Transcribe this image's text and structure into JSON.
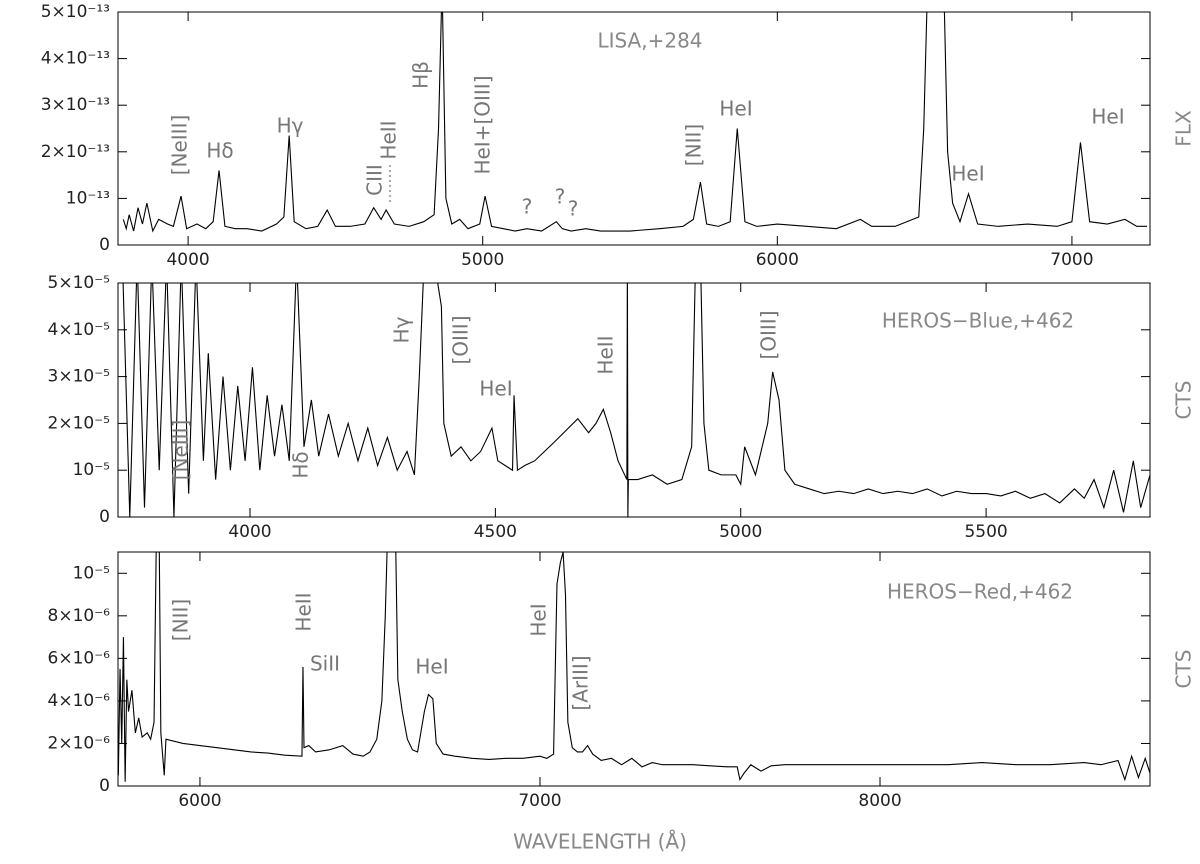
{
  "chart_data": [
    {
      "type": "line",
      "label": "LISA,+284",
      "ylabel": "FLX",
      "color": "#000000",
      "xlim": [
        3762,
        7265
      ],
      "ylim": [
        0,
        5e-13
      ],
      "xticks": [
        4000,
        5000,
        6000,
        7000
      ],
      "yticks": [
        0,
        {
          "value": 1e-13,
          "label": "10⁻¹³"
        },
        {
          "value": 2e-13,
          "label": "2×10⁻¹³"
        },
        {
          "value": 3e-13,
          "label": "3×10⁻¹³"
        },
        {
          "value": 4e-13,
          "label": "4×10⁻¹³"
        },
        {
          "value": 5e-13,
          "label": "5×10⁻¹³"
        }
      ],
      "annotations": [
        "[NeIII]",
        "Hδ",
        "Hγ",
        "CIII",
        "HeII",
        "Hβ",
        "HeI+[OIII]",
        "?",
        "?",
        "?",
        "[NII]",
        "HeI",
        "HeI",
        "HeI"
      ],
      "x": [
        3780,
        3790,
        3800,
        3815,
        3830,
        3845,
        3860,
        3880,
        3900,
        3930,
        3950,
        3976,
        3995,
        4030,
        4060,
        4085,
        4105,
        4125,
        4160,
        4200,
        4250,
        4300,
        4325,
        4343,
        4360,
        4400,
        4440,
        4472,
        4500,
        4550,
        4600,
        4630,
        4655,
        4672,
        4700,
        4750,
        4800,
        4835,
        4850,
        4862,
        4875,
        4895,
        4922,
        4950,
        4990,
        5008,
        5030,
        5070,
        5110,
        5150,
        5200,
        5250,
        5270,
        5300,
        5350,
        5400,
        5500,
        5600,
        5680,
        5715,
        5739,
        5760,
        5800,
        5840,
        5864,
        5890,
        5930,
        6000,
        6100,
        6200,
        6282,
        6320,
        6400,
        6480,
        6497,
        6510,
        6565,
        6578,
        6595,
        6620,
        6649,
        6680,
        6750,
        6850,
        6950,
        7000,
        7029,
        7060,
        7120,
        7180,
        7220,
        7255
      ],
      "values": [
        5.5e-14,
        3.5e-14,
        6.5e-14,
        3e-14,
        8e-14,
        4.5e-14,
        9e-14,
        3e-14,
        5.5e-14,
        4.5e-14,
        4e-14,
        1.05e-13,
        3.5e-14,
        4.5e-14,
        3.5e-14,
        5e-14,
        1.6e-13,
        4e-14,
        3.5e-14,
        3.5e-14,
        3e-14,
        4.5e-14,
        6e-14,
        2.35e-13,
        5e-14,
        3.5e-14,
        4e-14,
        7.5e-14,
        4e-14,
        4e-14,
        4.5e-14,
        8e-14,
        5.5e-14,
        7.5e-14,
        4.5e-14,
        4e-14,
        5e-14,
        6.5e-14,
        2.5e-13,
        5.6e-13,
        1e-13,
        4.5e-14,
        5.5e-14,
        3.5e-14,
        4.5e-14,
        1.05e-13,
        4e-14,
        3.5e-14,
        3e-14,
        3.5e-14,
        3e-14,
        5e-14,
        3.5e-14,
        3e-14,
        3.5e-14,
        3e-14,
        3e-14,
        3.5e-14,
        4e-14,
        5.5e-14,
        1.35e-13,
        4.5e-14,
        4e-14,
        5e-14,
        2.5e-13,
        5e-14,
        4e-14,
        4.5e-14,
        4e-14,
        3.5e-14,
        5.5e-14,
        4e-14,
        4e-14,
        6e-14,
        2.5e-13,
        5.6e-13,
        5.6e-13,
        2e-13,
        9e-14,
        5e-14,
        1.1e-13,
        4.5e-14,
        4e-14,
        4.5e-14,
        4e-14,
        5e-14,
        2.2e-13,
        5e-14,
        4.5e-14,
        5.5e-14,
        4e-14,
        4e-14
      ]
    },
    {
      "type": "line",
      "label": "HEROS−Blue,+462",
      "ylabel": "CTS",
      "color": "#000000",
      "xlim": [
        3731,
        5834
      ],
      "ylim": [
        0,
        5e-05
      ],
      "xticks": [
        4000,
        4500,
        5000,
        5500
      ],
      "yticks": [
        0,
        {
          "value": 1e-05,
          "label": "10⁻⁵"
        },
        {
          "value": 2e-05,
          "label": "2×10⁻⁵"
        },
        {
          "value": 3e-05,
          "label": "3×10⁻⁵"
        },
        {
          "value": 4e-05,
          "label": "4×10⁻⁵"
        },
        {
          "value": 5e-05,
          "label": "5×10⁻⁵"
        }
      ],
      "annotations": [
        "[NeIII]",
        "Hδ",
        "Hγ",
        "[OIII]",
        "HeI",
        "HeII",
        "[OIII]"
      ],
      "x": [
        3740,
        3755,
        3770,
        3785,
        3800,
        3815,
        3830,
        3845,
        3860,
        3875,
        3890,
        3905,
        3915,
        3930,
        3945,
        3960,
        3975,
        3990,
        4005,
        4020,
        4035,
        4050,
        4065,
        4080,
        4095,
        4110,
        4125,
        4140,
        4160,
        4180,
        4200,
        4220,
        4240,
        4260,
        4280,
        4300,
        4320,
        4335,
        4345,
        4355,
        4375,
        4390,
        4395,
        4410,
        4430,
        4450,
        4470,
        4493,
        4505,
        4520,
        4535,
        4538,
        4545,
        4560,
        4580,
        4600,
        4620,
        4668,
        4690,
        4705,
        4720,
        4735,
        4750,
        4768,
        4769,
        4770,
        4771,
        4790,
        4820,
        4850,
        4880,
        4900,
        4908,
        4918,
        4925,
        4935,
        4960,
        4990,
        5000,
        5008,
        5030,
        5055,
        5065,
        5078,
        5090,
        5110,
        5140,
        5170,
        5200,
        5230,
        5260,
        5290,
        5320,
        5350,
        5380,
        5410,
        5440,
        5470,
        5500,
        5530,
        5560,
        5590,
        5620,
        5650,
        5680,
        5700,
        5720,
        5740,
        5760,
        5780,
        5800,
        5815,
        5834
      ],
      "values": [
        5.5e-05,
        0,
        5.5e-05,
        2e-06,
        5.5e-05,
        1e-05,
        5.5e-05,
        0,
        5.5e-05,
        5e-06,
        5.5e-05,
        1.2e-05,
        3.5e-05,
        8e-06,
        3e-05,
        1e-05,
        2.8e-05,
        1.2e-05,
        3.2e-05,
        1e-05,
        2.6e-05,
        1.3e-05,
        2.4e-05,
        1.2e-05,
        5.5e-05,
        1.5e-05,
        2.5e-05,
        1.3e-05,
        2.2e-05,
        1.3e-05,
        2e-05,
        1.2e-05,
        1.9e-05,
        1.1e-05,
        1.7e-05,
        1e-05,
        1.4e-05,
        9e-06,
        3e-05,
        5.5e-05,
        5.5e-05,
        4.5e-05,
        2e-05,
        1.3e-05,
        1.5e-05,
        1.2e-05,
        1.4e-05,
        1.9e-05,
        1.2e-05,
        1.1e-05,
        1e-05,
        2.6e-05,
        1e-05,
        1.1e-05,
        1.2e-05,
        1.4e-05,
        1.6e-05,
        2.1e-05,
        1.8e-05,
        2e-05,
        2.3e-05,
        1.8e-05,
        1.2e-05,
        8e-06,
        5.5e-05,
        0,
        8e-06,
        8e-06,
        9e-06,
        7e-06,
        8e-06,
        1.5e-05,
        5.5e-05,
        5.5e-05,
        2e-05,
        1e-05,
        9e-06,
        9e-06,
        7e-06,
        1.5e-05,
        9e-06,
        2e-05,
        3.1e-05,
        2.5e-05,
        1e-05,
        7e-06,
        6e-06,
        5e-06,
        5.5e-06,
        5e-06,
        6e-06,
        5e-06,
        5.5e-06,
        5e-06,
        6e-06,
        4.5e-06,
        5.5e-06,
        5e-06,
        5e-06,
        4.5e-06,
        5.5e-06,
        4e-06,
        5e-06,
        3e-06,
        6e-06,
        4e-06,
        8e-06,
        2e-06,
        1e-05,
        1e-06,
        1.2e-05,
        2e-06,
        9e-06
      ]
    },
    {
      "type": "line",
      "label": "HEROS−Red,+462",
      "ylabel": "CTS",
      "xlabel": "WAVELENGTH (Å)",
      "color": "#000000",
      "xlim": [
        5759,
        8794
      ],
      "ylim": [
        0,
        1.1e-05
      ],
      "xticks": [
        6000,
        7000,
        8000
      ],
      "yticks": [
        0,
        {
          "value": 2e-06,
          "label": "2×10⁻⁶"
        },
        {
          "value": 4e-06,
          "label": "4×10⁻⁶"
        },
        {
          "value": 6e-06,
          "label": "6×10⁻⁶"
        },
        {
          "value": 8e-06,
          "label": "8×10⁻⁶"
        },
        {
          "value": 1e-05,
          "label": "10⁻⁵"
        }
      ],
      "annotations": [
        "[NII]",
        "HeII",
        "SiII",
        "HeI",
        "HeI",
        "[ArIII]"
      ],
      "x": [
        5760,
        5765,
        5770,
        5775,
        5780,
        5785,
        5790,
        5800,
        5810,
        5820,
        5830,
        5845,
        5855,
        5865,
        5872,
        5880,
        5885,
        5895,
        5900,
        5950,
        6000,
        6050,
        6100,
        6150,
        6200,
        6250,
        6300,
        6303,
        6306,
        6320,
        6340,
        6380,
        6420,
        6450,
        6480,
        6500,
        6520,
        6535,
        6545,
        6552,
        6575,
        6582,
        6595,
        6610,
        6625,
        6640,
        6660,
        6672,
        6685,
        6695,
        6715,
        6750,
        6800,
        6850,
        6900,
        6950,
        7000,
        7020,
        7040,
        7050,
        7060,
        7068,
        7075,
        7082,
        7095,
        7110,
        7125,
        7140,
        7155,
        7180,
        7210,
        7240,
        7270,
        7300,
        7330,
        7360,
        7400,
        7450,
        7500,
        7550,
        7580,
        7588,
        7600,
        7620,
        7650,
        7680,
        7720,
        7800,
        7900,
        8000,
        8100,
        8200,
        8300,
        8400,
        8500,
        8600,
        8650,
        8700,
        8720,
        8740,
        8760,
        8780,
        8794
      ],
      "values": [
        5e-07,
        5.5e-06,
        2e-06,
        7e-06,
        2e-07,
        5e-06,
        3.5e-06,
        4.5e-06,
        2.5e-06,
        3.2e-06,
        2.3e-06,
        2.5e-06,
        2.2e-06,
        3e-06,
        1.2e-05,
        1.2e-05,
        2.5e-06,
        5e-07,
        2.2e-06,
        2e-06,
        1.9e-06,
        1.8e-06,
        1.7e-06,
        1.6e-06,
        1.55e-06,
        1.45e-06,
        1.4e-06,
        5.6e-06,
        1.8e-06,
        1.9e-06,
        1.6e-06,
        1.7e-06,
        1.9e-06,
        1.5e-06,
        1.4e-06,
        1.6e-06,
        2.2e-06,
        4e-06,
        8e-06,
        1.2e-05,
        1.2e-05,
        5e-06,
        3.5e-06,
        2.2e-06,
        1.7e-06,
        1.6e-06,
        3.5e-06,
        4.3e-06,
        4.1e-06,
        2e-06,
        1.5e-06,
        1.4e-06,
        1.3e-06,
        1.25e-06,
        1.3e-06,
        1.3e-06,
        1.4e-06,
        1.3e-06,
        1.5e-06,
        9.5e-06,
        1.05e-05,
        1.1e-05,
        9e-06,
        3e-06,
        1.8e-06,
        1.6e-06,
        1.6e-06,
        1.9e-06,
        1.5e-06,
        1.2e-06,
        1.3e-06,
        1e-06,
        1.3e-06,
        9e-07,
        1.1e-06,
        1e-06,
        1e-06,
        1e-06,
        9.5e-07,
        9e-07,
        9e-07,
        3e-07,
        6e-07,
        1e-06,
        7e-07,
        9.5e-07,
        1e-06,
        1e-06,
        1e-06,
        1e-06,
        1e-06,
        1e-06,
        1.1e-06,
        1e-06,
        1e-06,
        1.1e-06,
        1e-06,
        1.2e-06,
        3e-07,
        1.4e-06,
        4e-07,
        1.3e-06,
        6e-07
      ]
    }
  ]
}
